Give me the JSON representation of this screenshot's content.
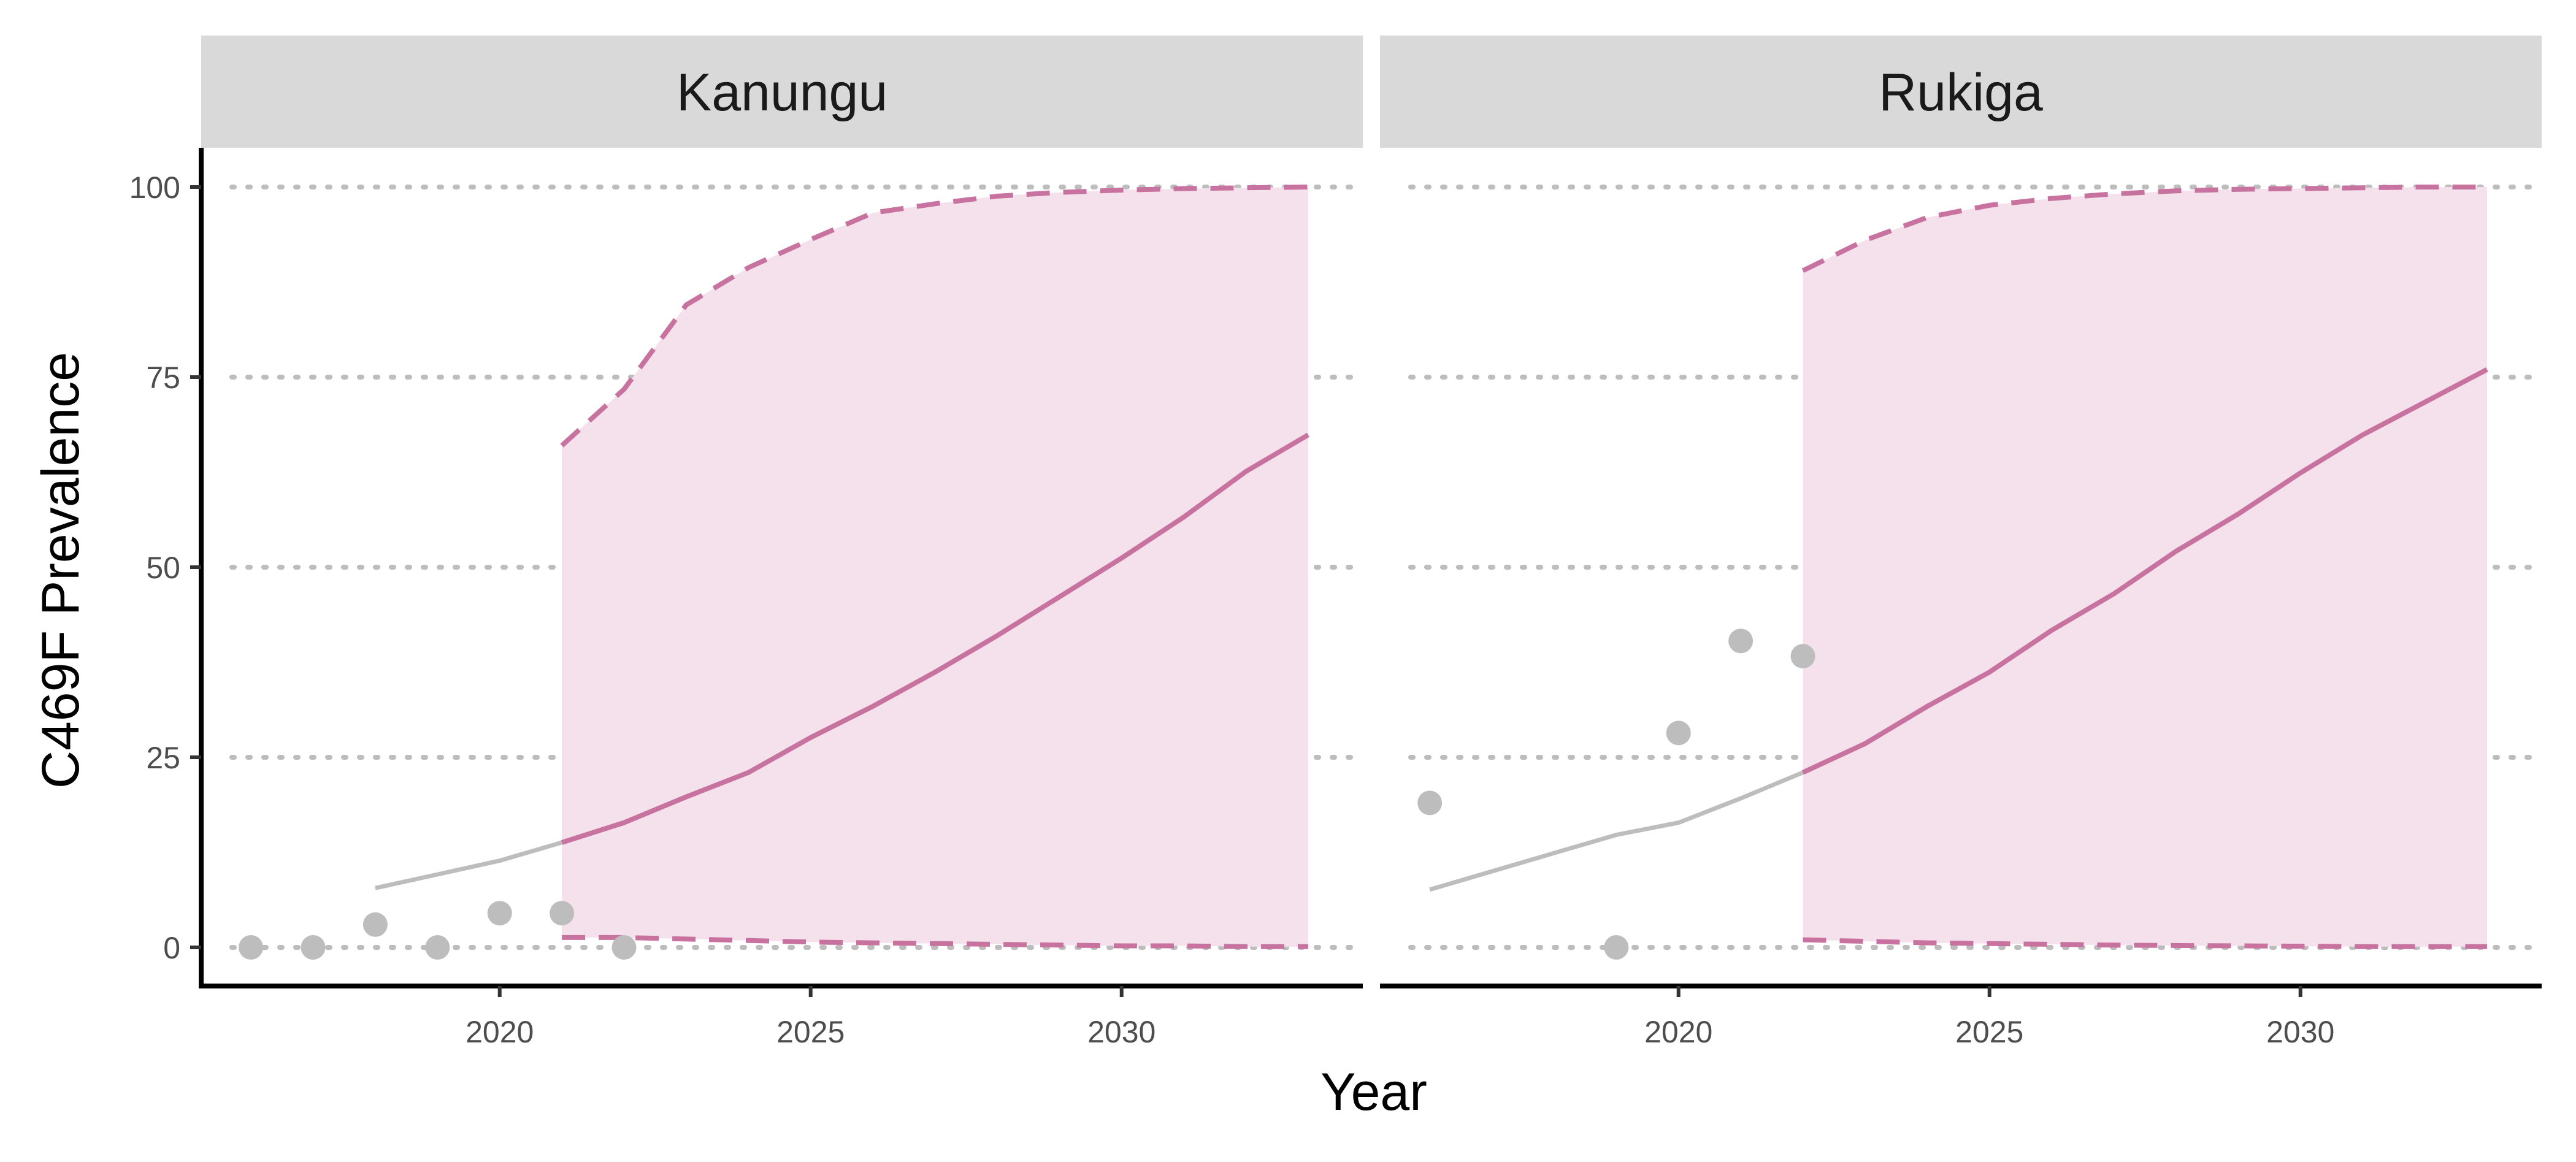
{
  "chart_data": {
    "type": "line",
    "ylabel": "C469F Prevalence",
    "xlabel": "Year",
    "ylim": [
      -5,
      105
    ],
    "xlim": [
      2015.2,
      2033.8
    ],
    "y_ticks": [
      0,
      25,
      50,
      75,
      100
    ],
    "x_ticks": [
      2020,
      2025,
      2030
    ],
    "grid": "horizontal dotted",
    "colors": {
      "projection": "#C8729F",
      "band": "#F4E1EC",
      "observed": "#BDBDBD",
      "strip": "#D9D9D9"
    },
    "panels": [
      {
        "label": "Kanungu",
        "observed_points": [
          {
            "x": 2016,
            "y": 0
          },
          {
            "x": 2017,
            "y": 0
          },
          {
            "x": 2018,
            "y": 3
          },
          {
            "x": 2019,
            "y": 0
          },
          {
            "x": 2020,
            "y": 4.5
          },
          {
            "x": 2021,
            "y": 4.5
          },
          {
            "x": 2022,
            "y": 0
          }
        ],
        "fitted_line": [
          {
            "x": 2018,
            "y": 7.8
          },
          {
            "x": 2019,
            "y": 9.6
          },
          {
            "x": 2020,
            "y": 11.4
          },
          {
            "x": 2021,
            "y": 13.8
          }
        ],
        "projection_median": [
          {
            "x": 2021,
            "y": 13.8
          },
          {
            "x": 2022,
            "y": 16.4
          },
          {
            "x": 2023,
            "y": 19.8
          },
          {
            "x": 2024,
            "y": 23.0
          },
          {
            "x": 2025,
            "y": 27.6
          },
          {
            "x": 2026,
            "y": 31.7
          },
          {
            "x": 2027,
            "y": 36.2
          },
          {
            "x": 2028,
            "y": 41.0
          },
          {
            "x": 2029,
            "y": 46.1
          },
          {
            "x": 2030,
            "y": 51.2
          },
          {
            "x": 2031,
            "y": 56.6
          },
          {
            "x": 2032,
            "y": 62.6
          },
          {
            "x": 2033,
            "y": 67.4
          }
        ],
        "projection_upper": [
          {
            "x": 2021,
            "y": 66
          },
          {
            "x": 2022,
            "y": 73.4
          },
          {
            "x": 2023,
            "y": 84.5
          },
          {
            "x": 2024,
            "y": 89.4
          },
          {
            "x": 2025,
            "y": 93.1
          },
          {
            "x": 2026,
            "y": 96.6
          },
          {
            "x": 2027,
            "y": 97.8
          },
          {
            "x": 2028,
            "y": 98.8
          },
          {
            "x": 2029,
            "y": 99.3
          },
          {
            "x": 2030,
            "y": 99.6
          },
          {
            "x": 2031,
            "y": 99.8
          },
          {
            "x": 2032,
            "y": 99.9
          },
          {
            "x": 2033,
            "y": 100
          }
        ],
        "projection_lower": [
          {
            "x": 2021,
            "y": 1.3
          },
          {
            "x": 2022,
            "y": 1.3
          },
          {
            "x": 2023,
            "y": 1.1
          },
          {
            "x": 2024,
            "y": 0.9
          },
          {
            "x": 2025,
            "y": 0.7
          },
          {
            "x": 2026,
            "y": 0.6
          },
          {
            "x": 2027,
            "y": 0.5
          },
          {
            "x": 2028,
            "y": 0.4
          },
          {
            "x": 2029,
            "y": 0.3
          },
          {
            "x": 2030,
            "y": 0.2
          },
          {
            "x": 2031,
            "y": 0.2
          },
          {
            "x": 2032,
            "y": 0.1
          },
          {
            "x": 2033,
            "y": 0.1
          }
        ]
      },
      {
        "label": "Rukiga",
        "observed_points": [
          {
            "x": 2016,
            "y": 19
          },
          {
            "x": 2019,
            "y": 0
          },
          {
            "x": 2020,
            "y": 28.2
          },
          {
            "x": 2021,
            "y": 40.3
          },
          {
            "x": 2022,
            "y": 38.3
          }
        ],
        "fitted_line": [
          {
            "x": 2016,
            "y": 7.6
          },
          {
            "x": 2017,
            "y": 10.0
          },
          {
            "x": 2018,
            "y": 12.4
          },
          {
            "x": 2019,
            "y": 14.8
          },
          {
            "x": 2020,
            "y": 16.4
          },
          {
            "x": 2021,
            "y": 19.6
          },
          {
            "x": 2022,
            "y": 23.0
          }
        ],
        "projection_median": [
          {
            "x": 2022,
            "y": 23.0
          },
          {
            "x": 2023,
            "y": 26.8
          },
          {
            "x": 2024,
            "y": 31.7
          },
          {
            "x": 2025,
            "y": 36.2
          },
          {
            "x": 2026,
            "y": 41.7
          },
          {
            "x": 2027,
            "y": 46.5
          },
          {
            "x": 2028,
            "y": 52.1
          },
          {
            "x": 2029,
            "y": 57.0
          },
          {
            "x": 2030,
            "y": 62.4
          },
          {
            "x": 2031,
            "y": 67.4
          },
          {
            "x": 2032,
            "y": 71.7
          },
          {
            "x": 2033,
            "y": 76.0
          }
        ],
        "projection_upper": [
          {
            "x": 2022,
            "y": 89
          },
          {
            "x": 2023,
            "y": 93
          },
          {
            "x": 2024,
            "y": 96
          },
          {
            "x": 2025,
            "y": 97.6
          },
          {
            "x": 2026,
            "y": 98.5
          },
          {
            "x": 2027,
            "y": 99.1
          },
          {
            "x": 2028,
            "y": 99.5
          },
          {
            "x": 2029,
            "y": 99.7
          },
          {
            "x": 2030,
            "y": 99.8
          },
          {
            "x": 2031,
            "y": 99.9
          },
          {
            "x": 2032,
            "y": 100
          },
          {
            "x": 2033,
            "y": 100
          }
        ],
        "projection_lower": [
          {
            "x": 2022,
            "y": 1.0
          },
          {
            "x": 2023,
            "y": 0.8
          },
          {
            "x": 2024,
            "y": 0.6
          },
          {
            "x": 2025,
            "y": 0.5
          },
          {
            "x": 2026,
            "y": 0.4
          },
          {
            "x": 2027,
            "y": 0.3
          },
          {
            "x": 2028,
            "y": 0.25
          },
          {
            "x": 2029,
            "y": 0.2
          },
          {
            "x": 2030,
            "y": 0.15
          },
          {
            "x": 2031,
            "y": 0.1
          },
          {
            "x": 2032,
            "y": 0.1
          },
          {
            "x": 2033,
            "y": 0.1
          }
        ]
      }
    ]
  }
}
